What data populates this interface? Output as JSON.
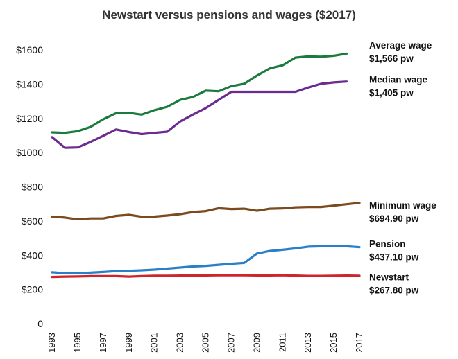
{
  "chart_data": {
    "type": "line",
    "title": "Newstart versus pensions and wages ($2017)",
    "xlabel": "",
    "ylabel": "",
    "ylim": [
      0,
      1700
    ],
    "grid": false,
    "legend": "inline end labels (right)",
    "yticks": [
      {
        "value": 0,
        "label": "0"
      },
      {
        "value": 200,
        "label": "$200"
      },
      {
        "value": 400,
        "label": "$400"
      },
      {
        "value": 600,
        "label": "$600"
      },
      {
        "value": 800,
        "label": "$800"
      },
      {
        "value": 1000,
        "label": "$1000"
      },
      {
        "value": 1200,
        "label": "$1200"
      },
      {
        "value": 1400,
        "label": "$1400"
      },
      {
        "value": 1600,
        "label": "$1600"
      }
    ],
    "xticks": [
      {
        "value": 1993,
        "label": "1993"
      },
      {
        "value": 1995,
        "label": "1995"
      },
      {
        "value": 1997,
        "label": "1997"
      },
      {
        "value": 1999,
        "label": "1999"
      },
      {
        "value": 2001,
        "label": "2001"
      },
      {
        "value": 2003,
        "label": "2003"
      },
      {
        "value": 2005,
        "label": "2005"
      },
      {
        "value": 2007,
        "label": "2007"
      },
      {
        "value": 2009,
        "label": "2009"
      },
      {
        "value": 2011,
        "label": "2011"
      },
      {
        "value": 2013,
        "label": "2013"
      },
      {
        "value": 2015,
        "label": "2015"
      },
      {
        "value": 2017,
        "label": "2017"
      }
    ],
    "x": [
      1993,
      1994,
      1995,
      1996,
      1997,
      1998,
      1999,
      2000,
      2001,
      2002,
      2003,
      2004,
      2005,
      2006,
      2007,
      2008,
      2009,
      2010,
      2011,
      2012,
      2013,
      2014,
      2015,
      2016,
      2017
    ],
    "series": [
      {
        "name": "Average wage",
        "color": "#1b7a3e",
        "label_line1": "Average wage",
        "label_line2": "$1,566 pw",
        "values": [
          1118,
          1115,
          1125,
          1150,
          1195,
          1230,
          1232,
          1222,
          1248,
          1268,
          1308,
          1325,
          1362,
          1358,
          1388,
          1402,
          1450,
          1492,
          1510,
          1555,
          1562,
          1560,
          1566,
          1578,
          null
        ]
      },
      {
        "name": "Median wage",
        "color": "#6a2c91",
        "label_line1": "Median wage",
        "label_line2": "$1,405 pw",
        "values": [
          1090,
          1028,
          1030,
          1062,
          1098,
          1135,
          1120,
          1108,
          1115,
          1122,
          1182,
          1222,
          1260,
          1308,
          1355,
          1355,
          1355,
          1355,
          1355,
          1355,
          1380,
          1402,
          1410,
          1415,
          null
        ]
      },
      {
        "name": "Minimum wage",
        "color": "#7b4a1e",
        "label_line1": "Minimum wage",
        "label_line2": "$694.90 pw",
        "values": [
          626,
          620,
          610,
          615,
          615,
          630,
          636,
          625,
          626,
          632,
          640,
          652,
          658,
          675,
          670,
          672,
          660,
          672,
          674,
          680,
          682,
          682,
          690,
          698,
          706
        ]
      },
      {
        "name": "Pension",
        "color": "#2a7fc9",
        "label_line1": "Pension",
        "label_line2": "$437.10 pw",
        "values": [
          300,
          295,
          295,
          298,
          302,
          307,
          309,
          312,
          316,
          322,
          328,
          334,
          338,
          344,
          350,
          355,
          410,
          425,
          432,
          440,
          450,
          452,
          452,
          452,
          447
        ]
      },
      {
        "name": "Newstart",
        "color": "#d0242b",
        "label_line1": "Newstart",
        "label_line2": "$267.80 pw",
        "values": [
          273,
          275,
          276,
          278,
          278,
          278,
          275,
          278,
          280,
          280,
          281,
          281,
          282,
          283,
          283,
          283,
          282,
          282,
          283,
          281,
          279,
          279,
          280,
          281,
          280
        ]
      }
    ]
  }
}
